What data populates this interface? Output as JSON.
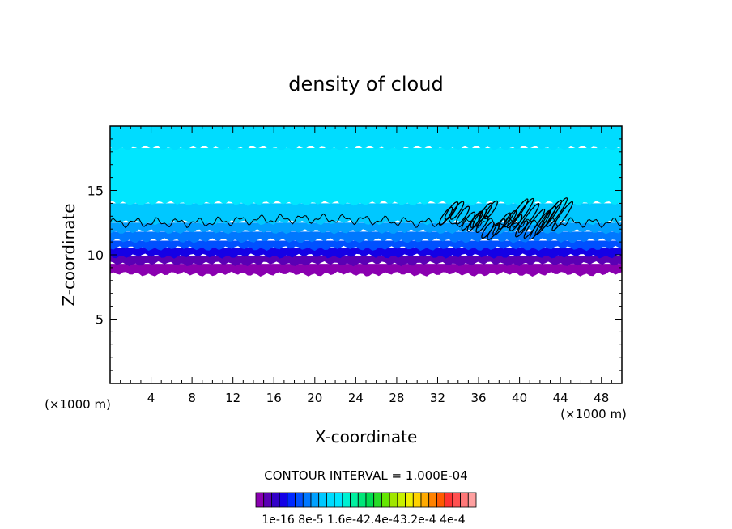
{
  "chart_data": {
    "type": "heatmap",
    "title": "density of cloud",
    "xlabel": "X-coordinate",
    "ylabel": "Z-coordinate",
    "x_unit_left": "(×1000 m)",
    "x_unit_right": "(×1000 m)",
    "xlim": [
      0,
      50
    ],
    "ylim": [
      0,
      20
    ],
    "xticks": [
      4,
      8,
      12,
      16,
      20,
      24,
      28,
      32,
      36,
      40,
      44,
      48
    ],
    "xtick_labels": [
      "4",
      "8",
      "12",
      "16",
      "20",
      "24",
      "28",
      "32",
      "36",
      "40",
      "44",
      "48"
    ],
    "yticks": [
      5,
      10,
      15
    ],
    "ytick_labels": [
      "5",
      "10",
      "15"
    ],
    "contour_interval_text": "CONTOUR INTERVAL = 1.000E-04",
    "contour_level": 0.0001,
    "cloud_layers": [
      {
        "z_bottom": 8.5,
        "z_top": 9.3,
        "level_index": 0
      },
      {
        "z_bottom": 9.3,
        "z_top": 9.9,
        "level_index": 1
      },
      {
        "z_bottom": 9.9,
        "z_top": 10.5,
        "level_index": 3
      },
      {
        "z_bottom": 10.5,
        "z_top": 11.1,
        "level_index": 5
      },
      {
        "z_bottom": 11.1,
        "z_top": 11.8,
        "level_index": 6
      },
      {
        "z_bottom": 11.8,
        "z_top": 12.5,
        "level_index": 7
      },
      {
        "z_bottom": 12.5,
        "z_top": 14.0,
        "level_index": 8
      },
      {
        "z_bottom": 14.0,
        "z_top": 18.3,
        "level_index": 10
      },
      {
        "z_bottom": 18.3,
        "z_top": 20.0,
        "level_index": 9
      }
    ],
    "colorbar": {
      "colors": [
        "#8a00b0",
        "#5a00b4",
        "#3200c8",
        "#1400e6",
        "#0028ff",
        "#0050ff",
        "#0078ff",
        "#00a0ff",
        "#00c8ff",
        "#00dcff",
        "#00e6ff",
        "#00f0d2",
        "#00f0a0",
        "#00e678",
        "#00dc50",
        "#28dc28",
        "#64e600",
        "#a0e600",
        "#c8f000",
        "#f0f000",
        "#ffd200",
        "#ffaa00",
        "#ff8200",
        "#ff5a00",
        "#ff3232",
        "#ff5050",
        "#ff7878",
        "#ffa0a0"
      ],
      "labels": [
        "1e-16",
        "8e-5",
        "1.6e-4",
        "2.4e-4",
        "3.2e-4",
        "4e-4"
      ],
      "label_text": "1e-16 8e-5 1.6e-42.4e-43.2e-4 4e-4"
    }
  }
}
